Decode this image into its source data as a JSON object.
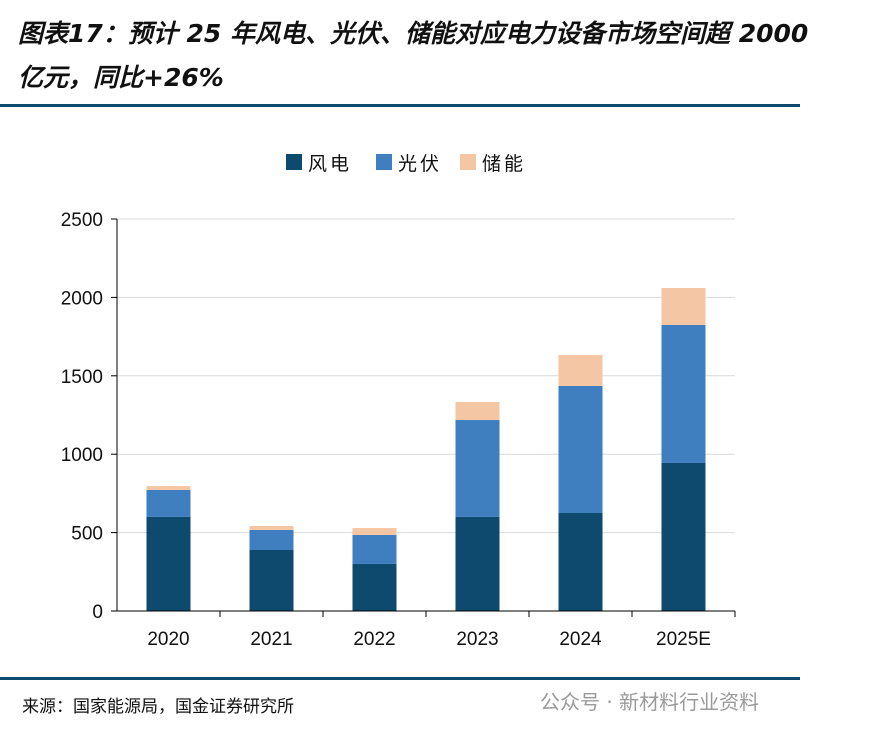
{
  "title": "图表17：预计 25 年风电、光伏、储能对应电力设备市场空间超 2000 亿元，同比+26%",
  "source": "来源：国家能源局，国金证券研究所",
  "watermark": "公众号 · 新材料行业资料",
  "chart_data": {
    "type": "bar",
    "stacked": true,
    "categories": [
      "2020",
      "2021",
      "2022",
      "2023",
      "2024",
      "2025E"
    ],
    "series": [
      {
        "name": "风电",
        "color": "#0e4a6e",
        "values": [
          600,
          389,
          300,
          600,
          625,
          944
        ]
      },
      {
        "name": "光伏",
        "color": "#3f7fc0",
        "values": [
          172,
          128,
          185,
          618,
          810,
          880
        ]
      },
      {
        "name": "储能",
        "color": "#f5c6a3",
        "values": [
          25,
          25,
          44,
          115,
          198,
          236
        ]
      }
    ],
    "ylim": [
      0,
      2500
    ],
    "yticks": [
      "0",
      "500",
      "1000",
      "1500",
      "2000",
      "2500"
    ],
    "grid": true,
    "legend": "top-center"
  }
}
